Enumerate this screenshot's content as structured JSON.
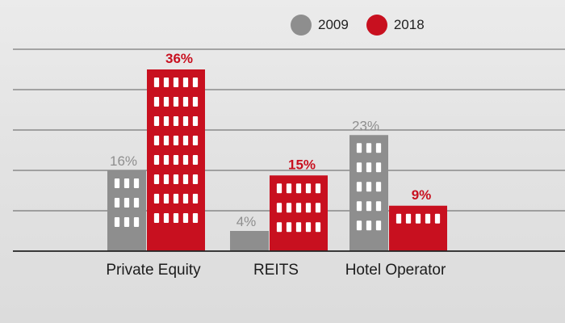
{
  "colors": {
    "series_2009": "#8e8e8e",
    "series_2018": "#c8101f",
    "window": "#ffffff",
    "gridline": "#555555",
    "category_label": "#1c1c1c"
  },
  "legend": {
    "items": [
      {
        "label": "2009",
        "color": "#8e8e8e"
      },
      {
        "label": "2018",
        "color": "#c8101f"
      }
    ]
  },
  "chart_data": {
    "type": "bar",
    "categories": [
      "Private Equity",
      "REITS",
      "Hotel Operator"
    ],
    "series": [
      {
        "name": "2009",
        "values": [
          16,
          4,
          23
        ],
        "labels": [
          "16%",
          "4%",
          "23%"
        ]
      },
      {
        "name": "2018",
        "values": [
          36,
          15,
          9
        ],
        "labels": [
          "36%",
          "15%",
          "9%"
        ]
      }
    ],
    "title": "",
    "xlabel": "",
    "ylabel": "",
    "ylim": [
      0,
      40
    ],
    "grid": true,
    "legend_position": "top-right"
  }
}
